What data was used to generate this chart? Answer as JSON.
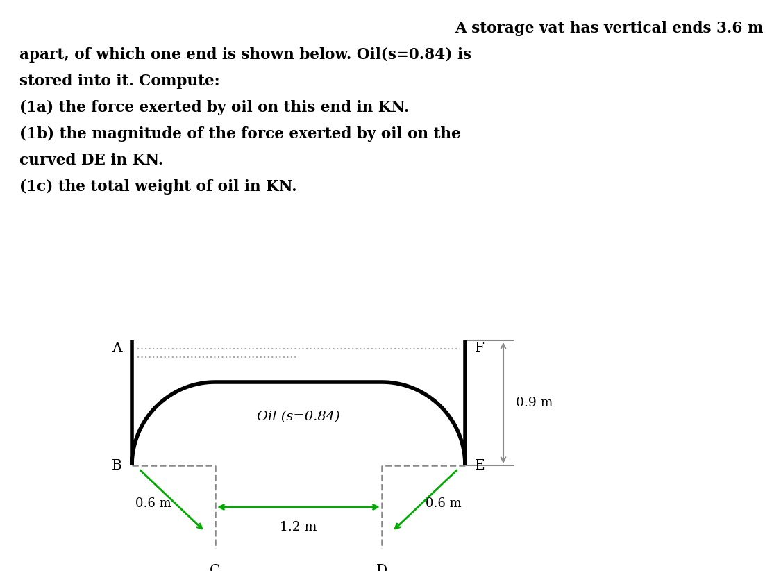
{
  "text_lines": [
    [
      "A storage vat has vertical ends 3.6 m",
      "right"
    ],
    [
      "apart, of which one end is shown below. Oil(s=0.84) is",
      "left"
    ],
    [
      "stored into it. Compute:",
      "left"
    ],
    [
      "(1a) the force exerted by oil on this end in KN.",
      "left"
    ],
    [
      "(1b) the magnitude of the force exerted by oil on the",
      "left"
    ],
    [
      "curved DE in KN.",
      "left"
    ],
    [
      "(1c) the total weight of oil in KN.",
      "left"
    ]
  ],
  "oil_label": "Oil (s=0.84)",
  "dim_09": "0.9 m",
  "dim_12": "1.2 m",
  "dim_06_left": "0.6 m",
  "dim_06_right": "0.6 m",
  "label_A": "A",
  "label_B": "B",
  "label_C": "C",
  "label_D": "D",
  "label_E": "E",
  "label_F": "F",
  "vessel_color": "#000000",
  "arrow_color": "#00aa00",
  "dim_line_color": "#888888",
  "bg_color": "#ffffff",
  "text_color": "#000000",
  "dash_color": "#888888"
}
